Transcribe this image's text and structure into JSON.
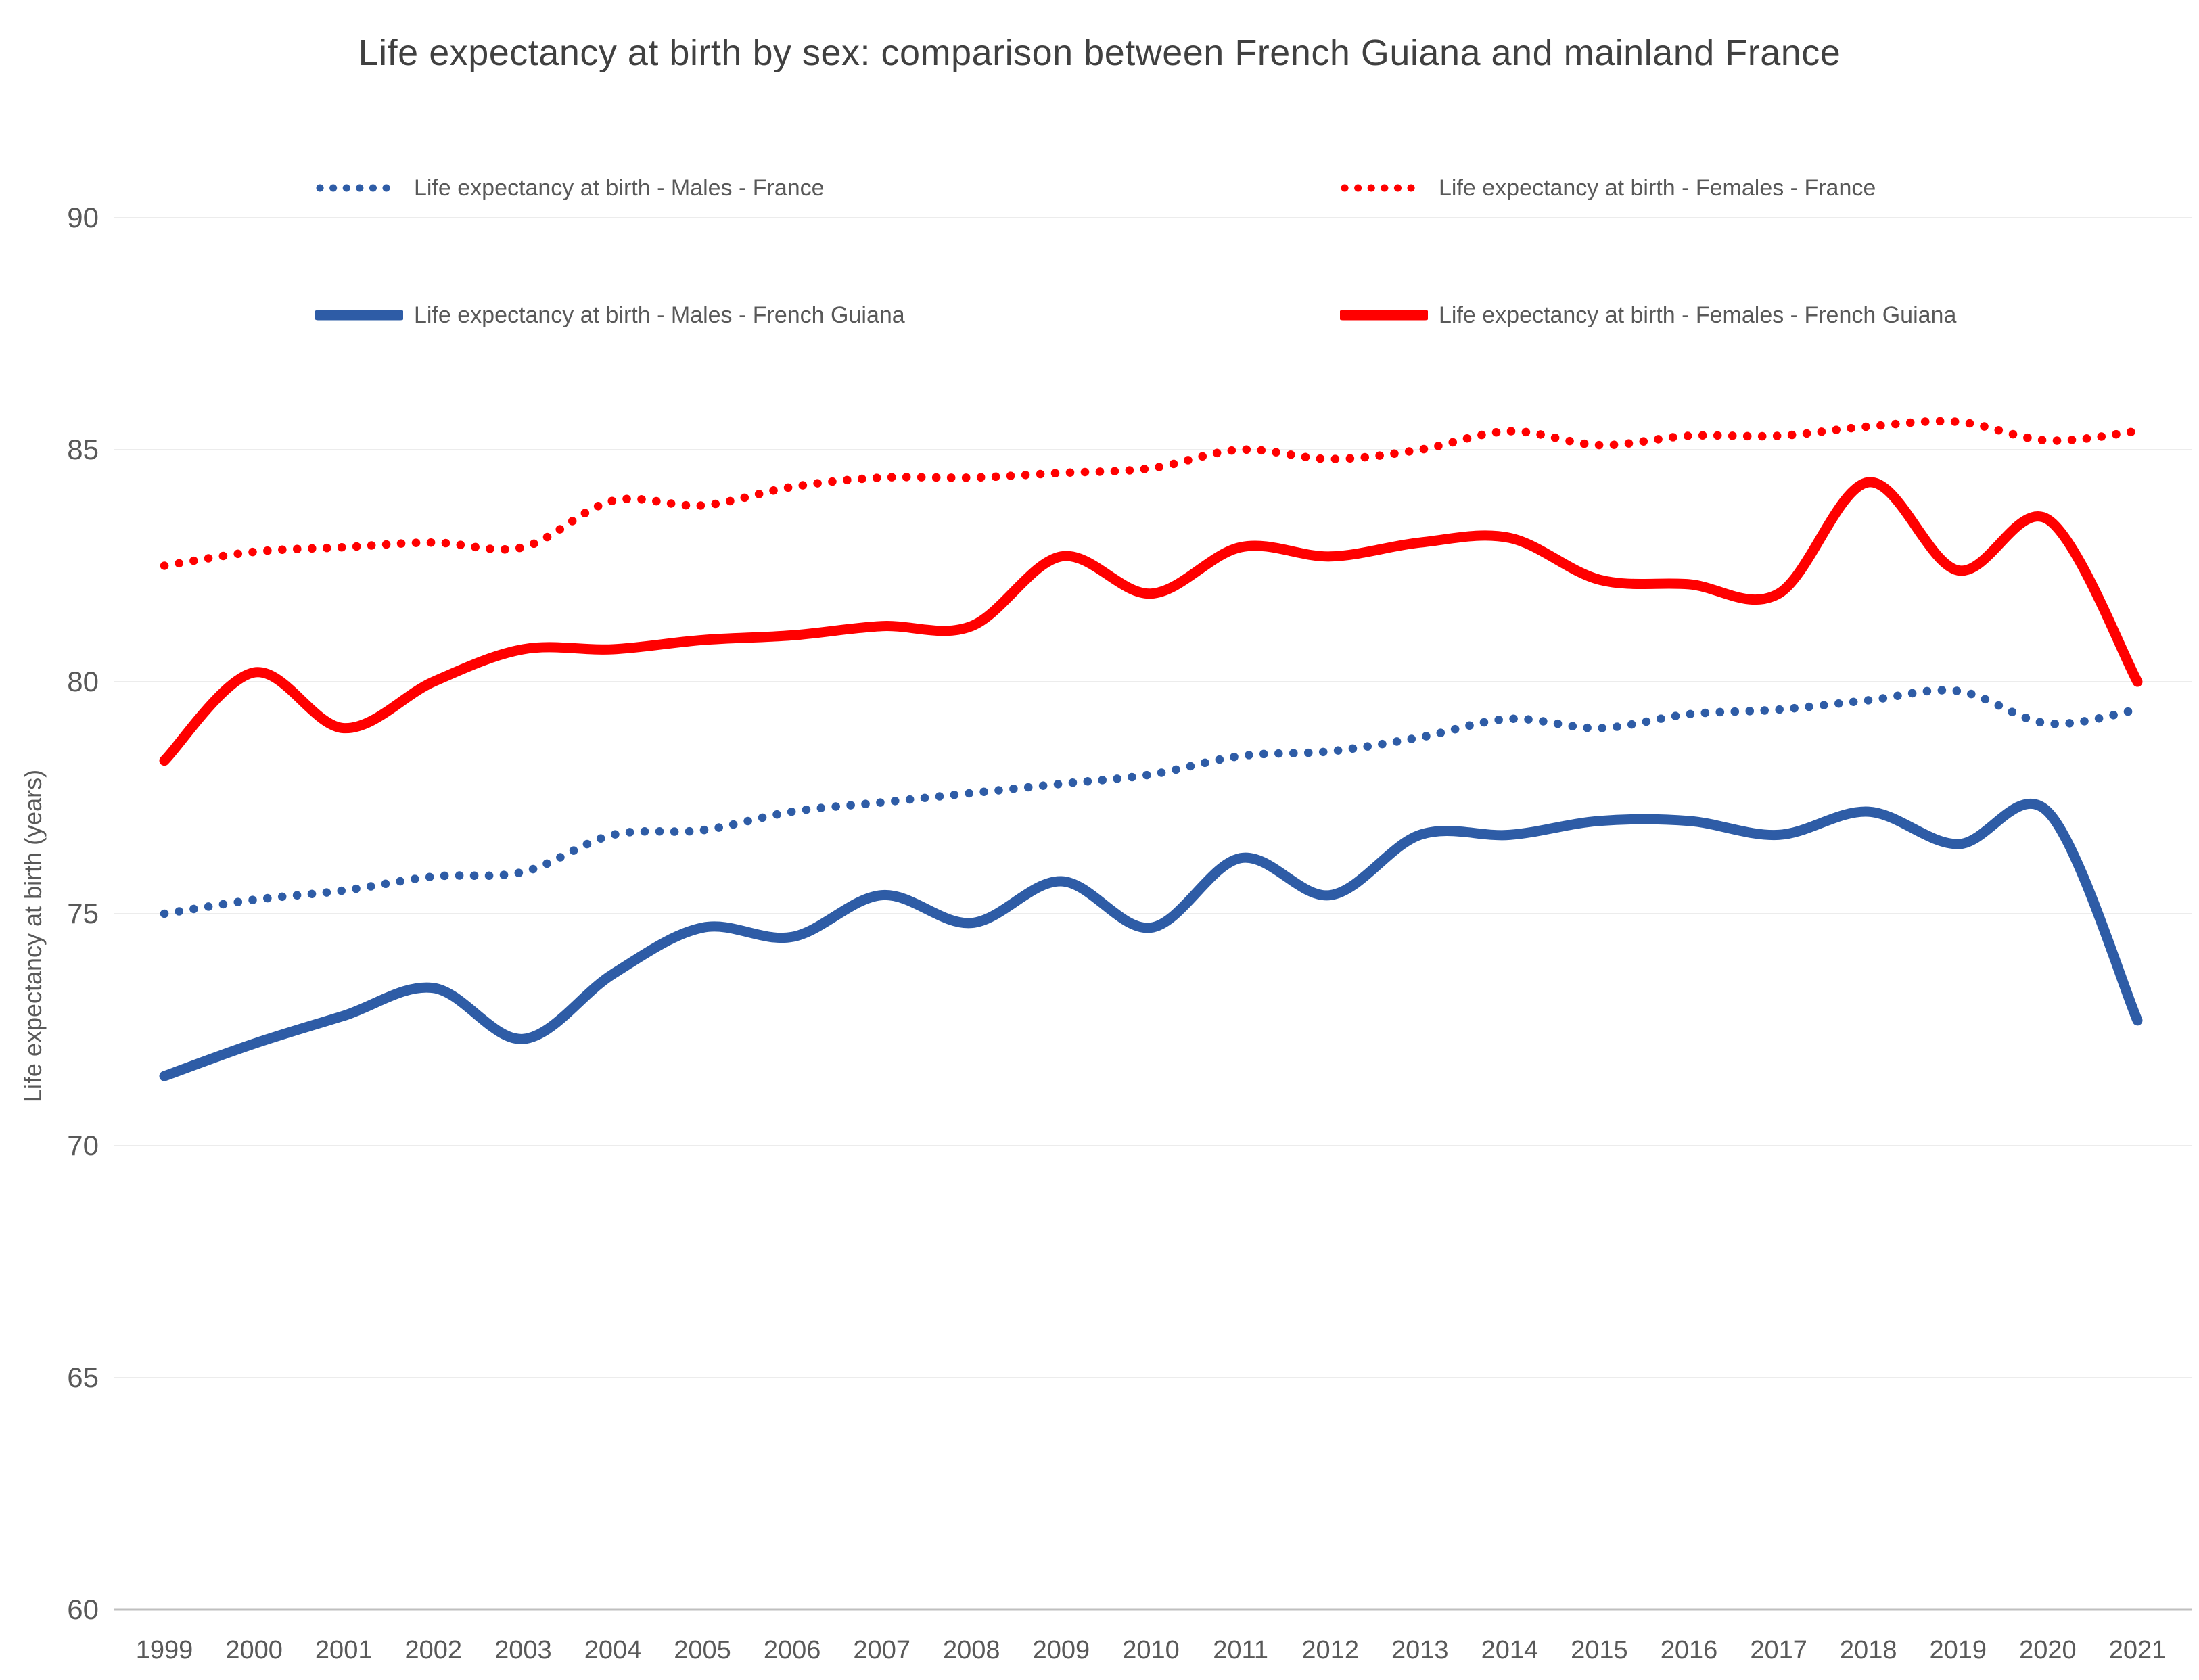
{
  "title": "Life expectancy at birth by sex: comparison between French Guiana and mainland France",
  "y_axis_title": "Life expectancy at birth (years)",
  "colors": {
    "blue": "#2E5CA6",
    "red": "#FF0000",
    "text": "#595959",
    "title_text": "#404040",
    "gridline": "#ECECEC",
    "axis_line": "#BFBFBF",
    "background": "#FFFFFF"
  },
  "chart_data": {
    "type": "line",
    "x": [
      1999,
      2000,
      2001,
      2002,
      2003,
      2004,
      2005,
      2006,
      2007,
      2008,
      2009,
      2010,
      2011,
      2012,
      2013,
      2014,
      2015,
      2016,
      2017,
      2018,
      2019,
      2020,
      2021
    ],
    "series": [
      {
        "name": "Life expectancy at birth - Males - France",
        "style": "dotted",
        "color": "#2E5CA6",
        "values": [
          75.0,
          75.3,
          75.5,
          75.8,
          75.9,
          76.7,
          76.8,
          77.2,
          77.4,
          77.6,
          77.8,
          78.0,
          78.4,
          78.5,
          78.8,
          79.2,
          79.0,
          79.3,
          79.4,
          79.6,
          79.8,
          79.1,
          79.4
        ]
      },
      {
        "name": "Life expectancy at birth - Females - France",
        "style": "dotted",
        "color": "#FF0000",
        "values": [
          82.5,
          82.8,
          82.9,
          83.0,
          82.9,
          83.9,
          83.8,
          84.2,
          84.4,
          84.4,
          84.5,
          84.6,
          85.0,
          84.8,
          85.0,
          85.4,
          85.1,
          85.3,
          85.3,
          85.5,
          85.6,
          85.2,
          85.4
        ]
      },
      {
        "name": "Life expectancy at birth - Males - French Guiana",
        "style": "solid",
        "color": "#2E5CA6",
        "values": [
          71.5,
          72.2,
          72.8,
          73.4,
          72.3,
          73.7,
          74.7,
          74.5,
          75.4,
          74.8,
          75.7,
          74.7,
          76.2,
          75.4,
          76.7,
          76.7,
          77.0,
          77.0,
          76.7,
          77.2,
          76.5,
          77.2,
          72.7
        ]
      },
      {
        "name": "Life expectancy at birth - Females - French Guiana",
        "style": "solid",
        "color": "#FF0000",
        "values": [
          78.3,
          80.2,
          79.0,
          80.0,
          80.7,
          80.7,
          80.9,
          81.0,
          81.2,
          81.2,
          82.7,
          81.9,
          82.9,
          82.7,
          83.0,
          83.1,
          82.2,
          82.1,
          81.9,
          84.3,
          82.4,
          83.5,
          80.0
        ]
      }
    ],
    "ylim": [
      60,
      90
    ],
    "yticks": [
      60,
      65,
      70,
      75,
      80,
      85,
      90
    ],
    "grid": true,
    "legend_position": "top-two-columns"
  }
}
